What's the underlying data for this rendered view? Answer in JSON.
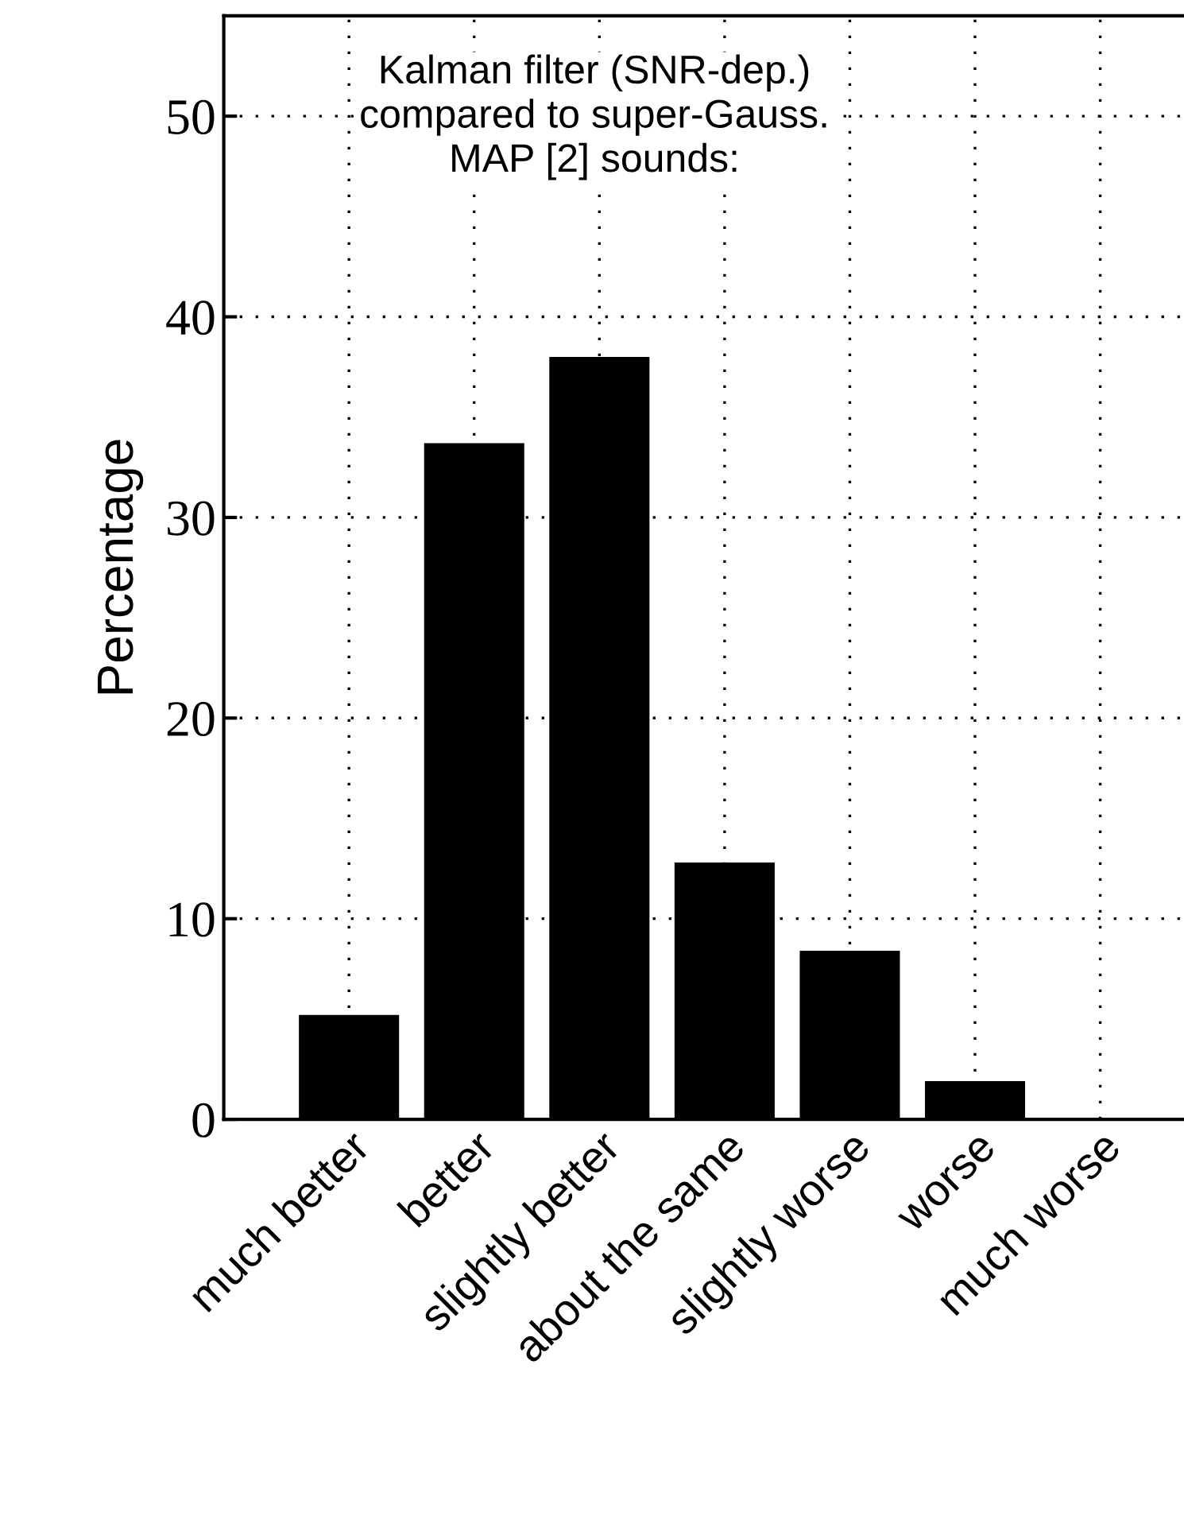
{
  "chart_data": {
    "type": "bar",
    "title": "Kalman filter (SNR-dep.)\ncompared to super-Gauss.\nMAP [2] sounds:",
    "ylabel": "Percentage",
    "categories": [
      "much better",
      "better",
      "slightly better",
      "about the same",
      "slightly worse",
      "worse",
      "much worse"
    ],
    "values": [
      5.2,
      33.7,
      38.0,
      12.8,
      8.4,
      1.9,
      0
    ],
    "color": "#000000",
    "ylim": [
      0,
      55
    ],
    "yticks": [
      0,
      10,
      20,
      30,
      40,
      50
    ],
    "grid": true
  }
}
